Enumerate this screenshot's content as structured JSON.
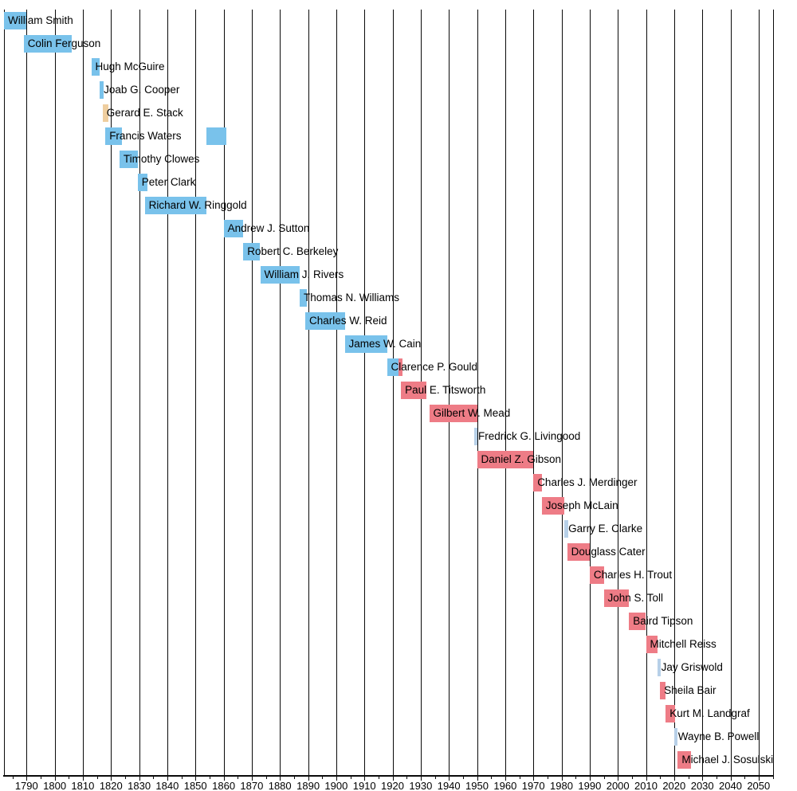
{
  "chart_data": {
    "type": "timeline",
    "title": "",
    "xlabel": "",
    "ylabel": "",
    "legend": "none",
    "x_axis": {
      "min": 1782,
      "max": 2055,
      "major_tick_labels": [
        1790,
        1800,
        1810,
        1820,
        1830,
        1840,
        1850,
        1860,
        1870,
        1880,
        1890,
        1900,
        1910,
        1920,
        1930,
        1940,
        1950,
        1960,
        1970,
        1980,
        1990,
        2000,
        2010,
        2020,
        2030,
        2040,
        2050
      ],
      "minor_ticks": [
        1785,
        1795,
        1805,
        1815,
        1825,
        1835,
        1845,
        1855,
        1865,
        1875,
        1885,
        1895,
        1905,
        1915,
        1925,
        1935,
        1945,
        1955,
        1965,
        1975,
        1985,
        1995,
        2005,
        2015,
        2025,
        2035,
        2045,
        2055
      ],
      "grid": true
    },
    "colors": {
      "blue": "#79C2EB",
      "red": "#EE7C86",
      "pale": "#B7D0E8",
      "tan": "#EFCE9F",
      "gridline": "#0a0a0a",
      "axis": "#0a0a0a",
      "text": "#000000",
      "background": "#FFFFFF"
    },
    "people": [
      {
        "name": "William Smith",
        "segments": [
          {
            "start": 1782,
            "end": 1790,
            "color": "blue"
          }
        ]
      },
      {
        "name": "Colin Ferguson",
        "segments": [
          {
            "start": 1789,
            "end": 1806,
            "color": "blue"
          }
        ]
      },
      {
        "name": "Hugh McGuire",
        "segments": [
          {
            "start": 1813,
            "end": 1816,
            "color": "blue"
          }
        ]
      },
      {
        "name": "Joab G. Cooper",
        "segments": [
          {
            "start": 1816,
            "end": 1817.5,
            "color": "blue"
          }
        ]
      },
      {
        "name": "Gerard E. Stack",
        "segments": [
          {
            "start": 1817,
            "end": 1819,
            "color": "tan"
          }
        ]
      },
      {
        "name": "Francis Waters",
        "segments": [
          {
            "start": 1818,
            "end": 1824,
            "color": "blue"
          },
          {
            "start": 1854,
            "end": 1861,
            "color": "blue"
          }
        ]
      },
      {
        "name": "Timothy Clowes",
        "segments": [
          {
            "start": 1823,
            "end": 1829.5,
            "color": "blue"
          }
        ]
      },
      {
        "name": "Peter Clark",
        "segments": [
          {
            "start": 1829.5,
            "end": 1833,
            "color": "blue"
          }
        ]
      },
      {
        "name": "Richard W. Ringgold",
        "segments": [
          {
            "start": 1832,
            "end": 1854,
            "color": "blue"
          }
        ]
      },
      {
        "name": "Andrew J. Sutton",
        "segments": [
          {
            "start": 1860,
            "end": 1867,
            "color": "blue"
          }
        ]
      },
      {
        "name": "Robert C. Berkeley",
        "segments": [
          {
            "start": 1867,
            "end": 1873,
            "color": "blue"
          }
        ]
      },
      {
        "name": "William J. Rivers",
        "segments": [
          {
            "start": 1873,
            "end": 1887,
            "color": "blue"
          }
        ]
      },
      {
        "name": "Thomas N. Williams",
        "segments": [
          {
            "start": 1887,
            "end": 1889.5,
            "color": "blue"
          }
        ]
      },
      {
        "name": "Charles W. Reid",
        "segments": [
          {
            "start": 1889,
            "end": 1903,
            "color": "blue"
          }
        ]
      },
      {
        "name": "James W. Cain",
        "segments": [
          {
            "start": 1903,
            "end": 1918,
            "color": "blue"
          }
        ]
      },
      {
        "name": "Clarence P. Gould",
        "segments": [
          {
            "start": 1918,
            "end": 1922,
            "color": "blue"
          },
          {
            "start": 1922,
            "end": 1923.5,
            "color": "red"
          }
        ]
      },
      {
        "name": "Paul E. Titsworth",
        "segments": [
          {
            "start": 1923,
            "end": 1932,
            "color": "red"
          }
        ]
      },
      {
        "name": "Gilbert W. Mead",
        "segments": [
          {
            "start": 1933,
            "end": 1950,
            "color": "red"
          }
        ]
      },
      {
        "name": "Fredrick G. Livingood",
        "segments": [
          {
            "start": 1949,
            "end": 1950,
            "color": "pale"
          }
        ]
      },
      {
        "name": "Daniel Z. Gibson",
        "segments": [
          {
            "start": 1950,
            "end": 1970,
            "color": "red"
          }
        ]
      },
      {
        "name": "Charles J. Merdinger",
        "segments": [
          {
            "start": 1970,
            "end": 1973,
            "color": "red"
          }
        ]
      },
      {
        "name": "Joseph McLain",
        "segments": [
          {
            "start": 1973,
            "end": 1981,
            "color": "red"
          }
        ]
      },
      {
        "name": "Garry E. Clarke",
        "segments": [
          {
            "start": 1981,
            "end": 1982.3,
            "color": "pale"
          }
        ]
      },
      {
        "name": "Douglass Cater",
        "segments": [
          {
            "start": 1982,
            "end": 1990,
            "color": "red"
          }
        ]
      },
      {
        "name": "Charles H. Trout",
        "segments": [
          {
            "start": 1990,
            "end": 1995,
            "color": "red"
          }
        ]
      },
      {
        "name": "John S. Toll",
        "segments": [
          {
            "start": 1995,
            "end": 2004,
            "color": "red"
          }
        ]
      },
      {
        "name": "Baird Tipson",
        "segments": [
          {
            "start": 2004,
            "end": 2010,
            "color": "red"
          }
        ]
      },
      {
        "name": "Mitchell Reiss",
        "segments": [
          {
            "start": 2010,
            "end": 2014,
            "color": "red"
          }
        ]
      },
      {
        "name": "Jay Griswold",
        "segments": [
          {
            "start": 2014,
            "end": 2015.3,
            "color": "pale"
          }
        ]
      },
      {
        "name": "Sheila Bair",
        "segments": [
          {
            "start": 2015,
            "end": 2017,
            "color": "red"
          }
        ]
      },
      {
        "name": "Kurt M. Landgraf",
        "segments": [
          {
            "start": 2017,
            "end": 2020.3,
            "color": "red"
          }
        ]
      },
      {
        "name": "Wayne B. Powell",
        "segments": [
          {
            "start": 2020,
            "end": 2021.3,
            "color": "pale"
          }
        ]
      },
      {
        "name": "Michael J. Sosulski",
        "segments": [
          {
            "start": 2021.3,
            "end": 2026,
            "color": "red"
          }
        ]
      }
    ]
  }
}
